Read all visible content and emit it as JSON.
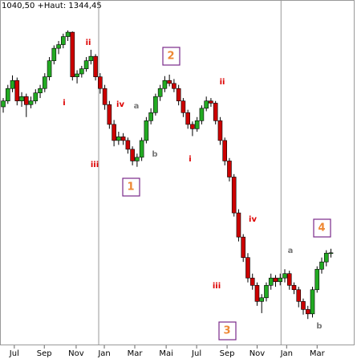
{
  "chart_data": {
    "type": "candlestick",
    "title": "1040,50 +Haut: 1344,45",
    "ylim": [
      914,
      1386
    ],
    "xlim": [
      -0.7,
      72.3
    ],
    "xticks": [
      {
        "value": 2.4,
        "label": "Jul"
      },
      {
        "value": 8.9,
        "label": "Sep"
      },
      {
        "value": 15.8,
        "label": "Nov"
      },
      {
        "value": 21.9,
        "label": "Jan"
      },
      {
        "value": 28.5,
        "label": "Mar"
      },
      {
        "value": 35.3,
        "label": "Mai"
      },
      {
        "value": 41.9,
        "label": "Jul"
      },
      {
        "value": 48.5,
        "label": "Sep"
      },
      {
        "value": 55,
        "label": "Nov"
      },
      {
        "value": 61.4,
        "label": "Jan"
      },
      {
        "value": 68,
        "label": "Mar"
      }
    ],
    "up_color": "#22aa22",
    "down_color": "#cc0000",
    "candles": [
      [
        1240,
        1252,
        1232,
        1248
      ],
      [
        1248,
        1270,
        1244,
        1265
      ],
      [
        1265,
        1283,
        1260,
        1276
      ],
      [
        1276,
        1280,
        1242,
        1248
      ],
      [
        1248,
        1260,
        1240,
        1254
      ],
      [
        1254,
        1258,
        1226,
        1243
      ],
      [
        1243,
        1254,
        1238,
        1248
      ],
      [
        1248,
        1264,
        1244,
        1259
      ],
      [
        1259,
        1270,
        1252,
        1265
      ],
      [
        1265,
        1286,
        1260,
        1281
      ],
      [
        1281,
        1308,
        1276,
        1303
      ],
      [
        1303,
        1324,
        1298,
        1320
      ],
      [
        1320,
        1330,
        1312,
        1325
      ],
      [
        1325,
        1340,
        1320,
        1336
      ],
      [
        1336,
        1344.45,
        1330,
        1342
      ],
      [
        1342,
        1343,
        1276,
        1281
      ],
      [
        1281,
        1290,
        1272,
        1285
      ],
      [
        1285,
        1296,
        1280,
        1292
      ],
      [
        1292,
        1308,
        1288,
        1303
      ],
      [
        1303,
        1318,
        1298,
        1309
      ],
      [
        1309,
        1312,
        1276,
        1281
      ],
      [
        1281,
        1286,
        1258,
        1265
      ],
      [
        1265,
        1270,
        1236,
        1243
      ],
      [
        1243,
        1248,
        1210,
        1216
      ],
      [
        1216,
        1222,
        1186,
        1194
      ],
      [
        1194,
        1206,
        1188,
        1199
      ],
      [
        1199,
        1204,
        1188,
        1194
      ],
      [
        1194,
        1198,
        1176,
        1182
      ],
      [
        1182,
        1186,
        1160,
        1166
      ],
      [
        1166,
        1176,
        1158,
        1171
      ],
      [
        1171,
        1198,
        1166,
        1194
      ],
      [
        1194,
        1226,
        1190,
        1221
      ],
      [
        1221,
        1238,
        1216,
        1232
      ],
      [
        1232,
        1258,
        1228,
        1254
      ],
      [
        1254,
        1270,
        1248,
        1265
      ],
      [
        1265,
        1282,
        1260,
        1276
      ],
      [
        1276,
        1284,
        1268,
        1272
      ],
      [
        1272,
        1278,
        1260,
        1265
      ],
      [
        1265,
        1270,
        1242,
        1248
      ],
      [
        1248,
        1252,
        1226,
        1232
      ],
      [
        1232,
        1236,
        1210,
        1216
      ],
      [
        1216,
        1220,
        1200,
        1210
      ],
      [
        1210,
        1226,
        1206,
        1221
      ],
      [
        1221,
        1242,
        1216,
        1238
      ],
      [
        1238,
        1254,
        1234,
        1248
      ],
      [
        1248,
        1252,
        1240,
        1245
      ],
      [
        1245,
        1248,
        1216,
        1221
      ],
      [
        1221,
        1226,
        1188,
        1194
      ],
      [
        1194,
        1198,
        1160,
        1166
      ],
      [
        1166,
        1170,
        1138,
        1144
      ],
      [
        1144,
        1148,
        1090,
        1095
      ],
      [
        1095,
        1100,
        1056,
        1062
      ],
      [
        1062,
        1066,
        1028,
        1034
      ],
      [
        1034,
        1040,
        1000,
        1006
      ],
      [
        1006,
        1012,
        990,
        996
      ],
      [
        996,
        1000,
        968,
        974
      ],
      [
        974,
        984,
        958,
        979
      ],
      [
        979,
        1000,
        974,
        996
      ],
      [
        996,
        1012,
        990,
        1006
      ],
      [
        1006,
        1010,
        994,
        1001
      ],
      [
        1001,
        1012,
        996,
        1006
      ],
      [
        1006,
        1018,
        1000,
        1012
      ],
      [
        1012,
        1016,
        990,
        996
      ],
      [
        996,
        1000,
        984,
        990
      ],
      [
        990,
        994,
        966,
        974
      ],
      [
        974,
        978,
        956,
        963
      ],
      [
        963,
        968,
        950,
        957
      ],
      [
        957,
        994,
        952,
        990
      ],
      [
        990,
        1022,
        986,
        1018
      ],
      [
        1018,
        1034,
        1012,
        1028
      ],
      [
        1028,
        1044,
        1022,
        1040
      ],
      [
        1040,
        1046,
        1034,
        1040.5
      ]
    ],
    "annotations": [
      {
        "text": "i",
        "color": "#dd0000"
      },
      {
        "text": "ii",
        "color": "#dd0000"
      },
      {
        "text": "iii",
        "color": "#dd0000"
      },
      {
        "text": "iv",
        "color": "#dd0000"
      },
      {
        "text": "a",
        "color": "#777777"
      },
      {
        "text": "b",
        "color": "#777777"
      },
      {
        "text": "1",
        "color": "#ee8833"
      },
      {
        "text": "2",
        "color": "#ee8833"
      },
      {
        "text": "i",
        "color": "#dd0000"
      },
      {
        "text": "ii",
        "color": "#dd0000"
      },
      {
        "text": "iii",
        "color": "#dd0000"
      },
      {
        "text": "iv",
        "color": "#dd0000"
      },
      {
        "text": "3",
        "color": "#ee8833"
      },
      {
        "text": "a",
        "color": "#777777"
      },
      {
        "text": "4",
        "color": "#ee8833"
      },
      {
        "text": "b",
        "color": "#777777"
      }
    ]
  }
}
